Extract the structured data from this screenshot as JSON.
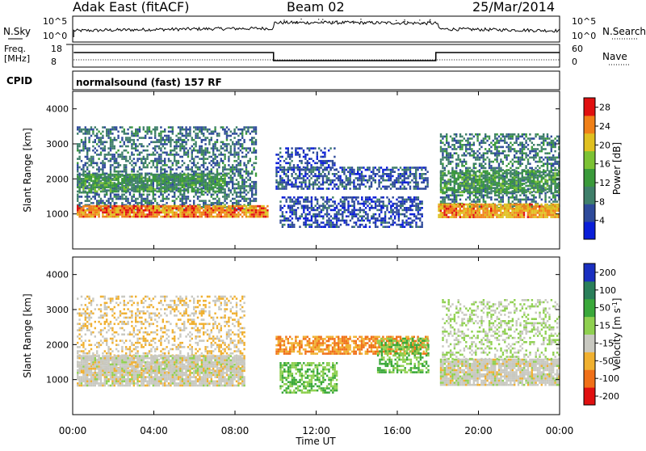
{
  "header": {
    "station": "Adak East (fitACF)",
    "beam": "Beam 02",
    "date": "25/Mar/2014"
  },
  "noise_panel": {
    "left_label": "N.Sky",
    "right_label": "N.Search",
    "left_ticks": [
      "10^5",
      "10^0"
    ],
    "right_ticks": [
      "10^5",
      "10^0"
    ]
  },
  "freq_panel": {
    "left_label_top": "Freq.",
    "left_label_bottom": "[MHz]",
    "right_label": "Nave",
    "left_ticks": [
      "18",
      "8"
    ],
    "right_ticks": [
      "60",
      "0"
    ]
  },
  "cpid": {
    "label": "CPID",
    "program": "normalsound (fast) 157 RF"
  },
  "chart_data": [
    {
      "type": "heatmap",
      "title": "",
      "xlabel": "Time UT",
      "ylabel": "Slant Range [km]",
      "xlim": [
        0,
        24
      ],
      "ylim": [
        0,
        4500
      ],
      "x_ticks": [
        "00:00",
        "04:00",
        "08:00",
        "12:00",
        "16:00",
        "20:00",
        "00:00"
      ],
      "x_tick_values": [
        0,
        4,
        8,
        12,
        16,
        20,
        24
      ],
      "y_ticks": [
        1000,
        2000,
        3000,
        4000
      ],
      "colorbar": {
        "label": "Power [dB]",
        "ticks": [
          "4",
          "8",
          "12",
          "16",
          "20",
          "24",
          "28"
        ],
        "tick_values": [
          4,
          8,
          12,
          16,
          20,
          24,
          28
        ],
        "range": [
          0,
          30
        ],
        "colors": [
          "#0a1ed8",
          "#2e4a9a",
          "#3f7f6a",
          "#3a9a3a",
          "#7cc234",
          "#e0c020",
          "#f08018",
          "#e01010"
        ]
      },
      "regions": [
        {
          "t": [
            0.2,
            9.0
          ],
          "r": [
            1150,
            3500
          ],
          "level": 8,
          "density": 0.5
        },
        {
          "t": [
            0.2,
            7.5
          ],
          "r": [
            1650,
            2150
          ],
          "level": 12,
          "density": 0.75
        },
        {
          "t": [
            0.2,
            9.6
          ],
          "r": [
            900,
            1250
          ],
          "level": 24,
          "density": 0.9
        },
        {
          "t": [
            10.0,
            17.5
          ],
          "r": [
            1700,
            2350
          ],
          "level": 6,
          "density": 0.6
        },
        {
          "t": [
            10.0,
            13.0
          ],
          "r": [
            2300,
            2900
          ],
          "level": 5,
          "density": 0.35
        },
        {
          "t": [
            10.2,
            17.2
          ],
          "r": [
            650,
            1500
          ],
          "level": 5,
          "density": 0.55
        },
        {
          "t": [
            18.1,
            24
          ],
          "r": [
            1150,
            3300
          ],
          "level": 9,
          "density": 0.5
        },
        {
          "t": [
            18.1,
            24
          ],
          "r": [
            1650,
            2250
          ],
          "level": 12,
          "density": 0.7
        },
        {
          "t": [
            18.0,
            24
          ],
          "r": [
            900,
            1300
          ],
          "level": 23,
          "density": 0.9
        }
      ]
    },
    {
      "type": "heatmap",
      "title": "",
      "xlabel": "Time UT",
      "ylabel": "Slant Range [km]",
      "xlim": [
        0,
        24
      ],
      "ylim": [
        0,
        4500
      ],
      "x_ticks": [
        "00:00",
        "04:00",
        "08:00",
        "12:00",
        "16:00",
        "20:00",
        "00:00"
      ],
      "x_tick_values": [
        0,
        4,
        8,
        12,
        16,
        20,
        24
      ],
      "y_ticks": [
        1000,
        2000,
        3000,
        4000
      ],
      "colorbar": {
        "label": "Velocity [m s^-1]",
        "ticks": [
          "200",
          "100",
          "50",
          "15",
          "-15",
          "-50",
          "-100",
          "-200"
        ],
        "colors": [
          "#1a2fc0",
          "#2a7f5a",
          "#3aa83a",
          "#8fd050",
          "#c8c8c0",
          "#f0b030",
          "#f07018",
          "#e01010"
        ]
      },
      "regions": [
        {
          "t": [
            0.2,
            8.5
          ],
          "r": [
            1200,
            3400
          ],
          "v": -15,
          "density": 0.35
        },
        {
          "t": [
            0.2,
            8.5
          ],
          "r": [
            850,
            1700
          ],
          "v": 0,
          "density": 0.9
        },
        {
          "t": [
            10.0,
            17.5
          ],
          "r": [
            1750,
            2250
          ],
          "v": -50,
          "density": 0.7
        },
        {
          "t": [
            10.2,
            13.0
          ],
          "r": [
            650,
            1500
          ],
          "v": 50,
          "density": 0.6
        },
        {
          "t": [
            15.0,
            17.5
          ],
          "r": [
            1200,
            2200
          ],
          "v": 50,
          "density": 0.55
        },
        {
          "t": [
            18.1,
            24
          ],
          "r": [
            850,
            1600
          ],
          "v": 0,
          "density": 0.9
        },
        {
          "t": [
            18.2,
            24
          ],
          "r": [
            1600,
            3300
          ],
          "v": 15,
          "density": 0.35
        }
      ]
    }
  ]
}
